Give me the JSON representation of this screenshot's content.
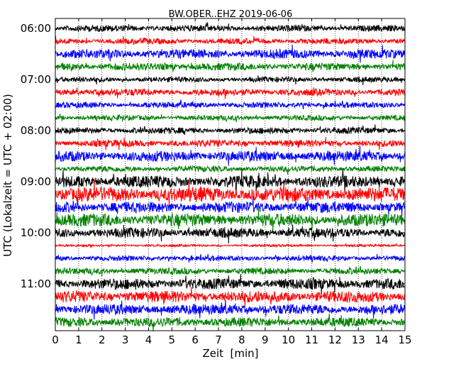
{
  "chart_data": {
    "type": "line",
    "title": "BW.OBER..EHZ 2019-06-06",
    "xlabel": "Zeit  [min]",
    "ylabel": "UTC (Lokalzeit = UTC + 02:00)",
    "xlim": [
      0,
      15
    ],
    "x_ticks": [
      "0",
      "1",
      "2",
      "3",
      "4",
      "5",
      "6",
      "7",
      "8",
      "9",
      "10",
      "11",
      "12",
      "13",
      "14",
      "15"
    ],
    "y_ticks": [
      "06:00",
      "07:00",
      "08:00",
      "09:00",
      "10:00",
      "11:00"
    ],
    "grid": "vertical dotted at each minute",
    "trace_colors": [
      "#000000",
      "#ff0000",
      "#0000ff",
      "#008000"
    ],
    "trace_interval_min": 15,
    "trace_start": "06:00",
    "trace_count": 24,
    "trace_amplitude": [
      0.55,
      0.5,
      0.8,
      0.65,
      0.45,
      0.6,
      0.5,
      0.45,
      0.55,
      0.6,
      0.9,
      0.5,
      1.05,
      1.25,
      0.95,
      1.1,
      0.85,
      0.2,
      0.45,
      0.55,
      0.95,
      1.0,
      0.9,
      0.8
    ]
  }
}
